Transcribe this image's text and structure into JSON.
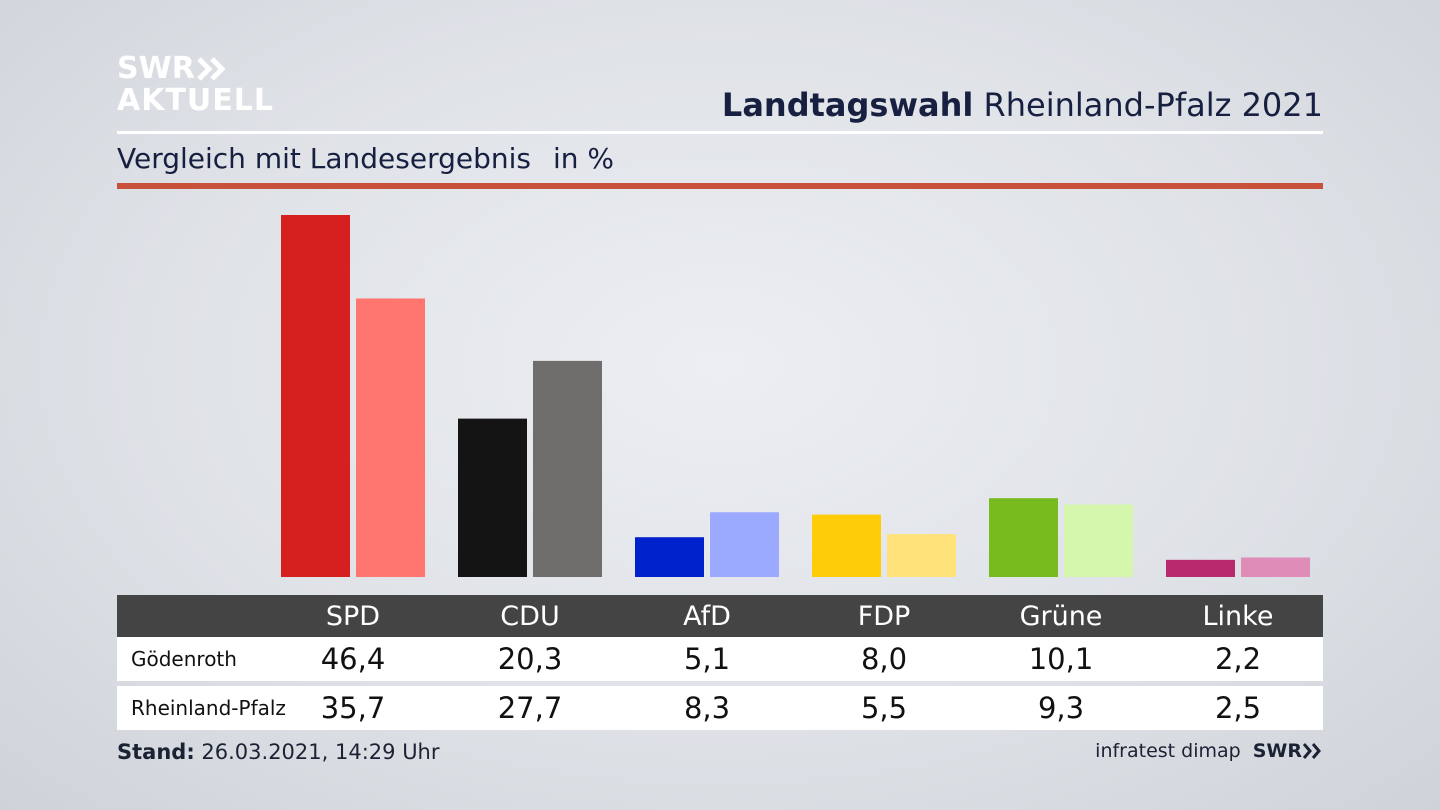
{
  "logo": {
    "line1": "SWR",
    "line2": "AKTUELL"
  },
  "title": {
    "bold": "Landtagswahl",
    "rest": "Rheinland-Pfalz 2021"
  },
  "subtitle": {
    "text": "Vergleich mit Landesergebnis",
    "unit": "in %"
  },
  "table": {
    "rows": [
      {
        "label": "Gödenroth"
      },
      {
        "label": "Rheinland-Pfalz"
      }
    ]
  },
  "footer": {
    "stand_label": "Stand:",
    "stand_value": "26.03.2021, 14:29 Uhr",
    "source": "infratest dimap",
    "brand": "SWR"
  },
  "chart_data": {
    "type": "bar",
    "title": "",
    "xlabel": "",
    "ylabel": "",
    "ylim": [
      0,
      46.4
    ],
    "grid": false,
    "legend": "none",
    "categories": [
      "SPD",
      "CDU",
      "AfD",
      "FDP",
      "Grüne",
      "Linke"
    ],
    "series": [
      {
        "name": "Gödenroth",
        "values": [
          46.4,
          20.3,
          5.1,
          8.0,
          10.1,
          2.2
        ],
        "labels": [
          "46,4",
          "20,3",
          "5,1",
          "8,0",
          "10,1",
          "2,2"
        ]
      },
      {
        "name": "Rheinland-Pfalz",
        "values": [
          35.7,
          27.7,
          8.3,
          5.5,
          9.3,
          2.5
        ],
        "labels": [
          "35,7",
          "27,7",
          "8,3",
          "5,5",
          "9,3",
          "2,5"
        ]
      }
    ],
    "colors": {
      "series0": [
        "#d62020",
        "#141414",
        "#0022cc",
        "#ffcc0a",
        "#77bb1e",
        "#b8296e"
      ],
      "series1": [
        "#ff7570",
        "#706e6c",
        "#9ba9ff",
        "#ffe27a",
        "#d5f6ad",
        "#e08cb8"
      ]
    }
  }
}
